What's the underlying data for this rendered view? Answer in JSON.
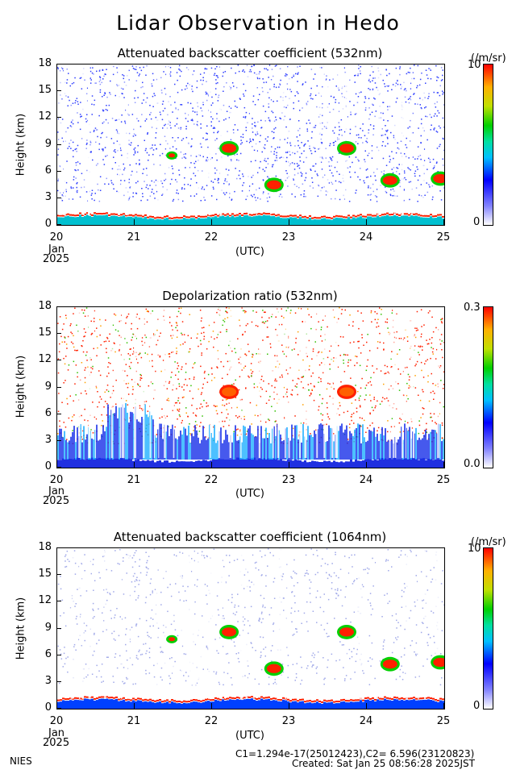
{
  "title": "Lidar Observation in Hedo",
  "footer": {
    "institution": "NIES",
    "calibration": "C1=1.294e-17(25012423),C2= 6.596(23120823)",
    "created": "Created: Sat Jan 25 08:56:28 2025JST"
  },
  "axes_common": {
    "ylabel": "Height (km)",
    "xlabel": "(UTC)",
    "x_month": "Jan",
    "x_year": "2025",
    "x_ticks": [
      "20",
      "21",
      "22",
      "23",
      "24",
      "25"
    ],
    "y_ticks": [
      "0",
      "3",
      "6",
      "9",
      "12",
      "15",
      "18"
    ]
  },
  "colors": {
    "colorbar_low": "#ffffff",
    "colorbar_mid": "#00d000",
    "colorbar_high": "#ff0000"
  },
  "chart_data": [
    {
      "type": "heatmap",
      "title": "Attenuated backscatter coefficient (532nm)",
      "ylabel": "Height (km)",
      "xlabel": "(UTC)",
      "xlim": [
        20,
        25
      ],
      "ylim": [
        0,
        18
      ],
      "colorbar": {
        "unit": "(/m/sr)",
        "max_label": "10",
        "min_label": "0"
      },
      "features": [
        {
          "x": 21.48,
          "y": 7.8,
          "intensity": "medium"
        },
        {
          "x": 22.22,
          "y": 8.6,
          "intensity": "high"
        },
        {
          "x": 23.74,
          "y": 8.6,
          "intensity": "high"
        },
        {
          "x": 22.8,
          "y": 4.5,
          "intensity": "high"
        },
        {
          "x": 24.3,
          "y": 5.0,
          "intensity": "high"
        },
        {
          "x": 24.95,
          "y": 5.2,
          "intensity": "high"
        }
      ]
    },
    {
      "type": "heatmap",
      "title": "Depolarization ratio (532nm)",
      "ylabel": "Height (km)",
      "xlabel": "(UTC)",
      "xlim": [
        20,
        25
      ],
      "ylim": [
        0,
        18
      ],
      "colorbar": {
        "unit": "",
        "max_label": "0.3",
        "min_label": "0.0"
      },
      "features": [
        {
          "x": 22.22,
          "y": 8.5,
          "intensity": "high"
        },
        {
          "x": 23.74,
          "y": 8.5,
          "intensity": "high"
        }
      ]
    },
    {
      "type": "heatmap",
      "title": "Attenuated backscatter coefficient (1064nm)",
      "ylabel": "Height (km)",
      "xlabel": "(UTC)",
      "xlim": [
        20,
        25
      ],
      "ylim": [
        0,
        18
      ],
      "colorbar": {
        "unit": "(/m/sr)",
        "max_label": "10",
        "min_label": "0"
      },
      "features": [
        {
          "x": 21.48,
          "y": 7.8,
          "intensity": "medium"
        },
        {
          "x": 22.22,
          "y": 8.6,
          "intensity": "high"
        },
        {
          "x": 23.74,
          "y": 8.6,
          "intensity": "high"
        },
        {
          "x": 22.8,
          "y": 4.5,
          "intensity": "high"
        },
        {
          "x": 24.3,
          "y": 5.0,
          "intensity": "high"
        },
        {
          "x": 24.95,
          "y": 5.2,
          "intensity": "high"
        }
      ]
    }
  ]
}
